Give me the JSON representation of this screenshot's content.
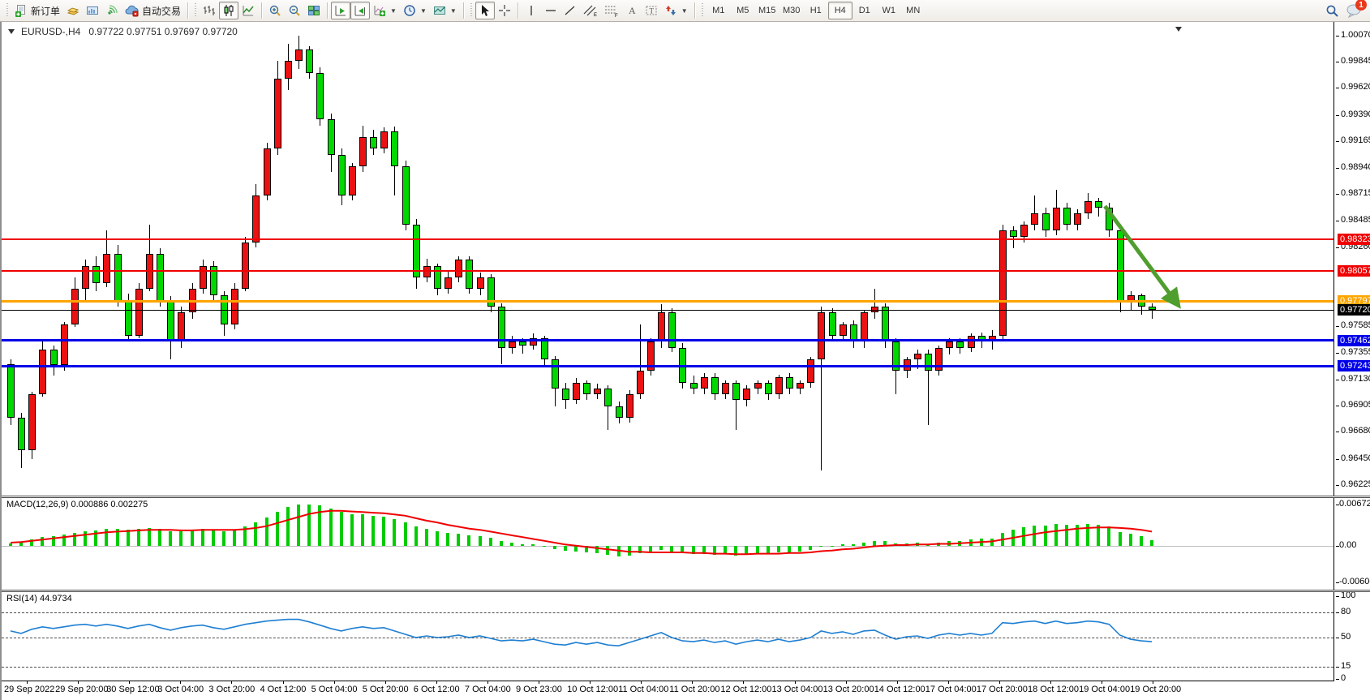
{
  "app": {
    "window_symbol": "EURUSD-,H4",
    "ohlc_display": "0.97722 0.97751 0.97697 0.97720"
  },
  "toolbar": {
    "new_order_label": "新订单",
    "autotrading_label": "自动交易",
    "timeframes": [
      "M1",
      "M5",
      "M15",
      "M30",
      "H1",
      "H4",
      "D1",
      "W1",
      "MN"
    ],
    "selected_timeframe": "H4",
    "notification_count": "1"
  },
  "chart_data": {
    "type": "candlestick",
    "symbol": "EURUSD-",
    "timeframe": "H4",
    "ohlc_display": {
      "open": "0.97722",
      "high": "0.97751",
      "low": "0.97697",
      "close": "0.97720"
    },
    "y_range_main": [
      0.96135,
      1.00185
    ],
    "price_axis_ticks": [
      "1.00070",
      "0.99845",
      "0.99620",
      "0.99390",
      "0.99165",
      "0.98940",
      "0.98715",
      "0.98485",
      "0.98260",
      "0.97585",
      "0.97355",
      "0.97130",
      "0.96905",
      "0.96680",
      "0.96450",
      "0.96225"
    ],
    "time_labels": [
      "29 Sep 2022",
      "29 Sep 20:00",
      "30 Sep 12:00",
      "3 Oct 04:00",
      "3 Oct 20:00",
      "4 Oct 12:00",
      "5 Oct 04:00",
      "5 Oct 20:00",
      "6 Oct 12:00",
      "7 Oct 04:00",
      "9 Oct 23:00",
      "10 Oct 12:00",
      "11 Oct 04:00",
      "11 Oct 20:00",
      "12 Oct 12:00",
      "13 Oct 04:00",
      "13 Oct 20:00",
      "14 Oct 12:00",
      "17 Oct 04:00",
      "17 Oct 20:00",
      "18 Oct 12:00",
      "19 Oct 04:00",
      "19 Oct 20:00"
    ],
    "candles": [
      [
        0.9726,
        0.973,
        0.9674,
        0.968
      ],
      [
        0.968,
        0.9684,
        0.9637,
        0.9652
      ],
      [
        0.9652,
        0.9702,
        0.9645,
        0.97
      ],
      [
        0.97,
        0.9745,
        0.9698,
        0.9738
      ],
      [
        0.9738,
        0.9742,
        0.9716,
        0.9725
      ],
      [
        0.9725,
        0.9762,
        0.972,
        0.976
      ],
      [
        0.976,
        0.98,
        0.9758,
        0.979
      ],
      [
        0.979,
        0.9815,
        0.978,
        0.981
      ],
      [
        0.981,
        0.9818,
        0.9788,
        0.9795
      ],
      [
        0.9795,
        0.984,
        0.9792,
        0.982
      ],
      [
        0.982,
        0.9828,
        0.9775,
        0.978
      ],
      [
        0.978,
        0.9786,
        0.9745,
        0.975
      ],
      [
        0.975,
        0.9795,
        0.9748,
        0.979
      ],
      [
        0.979,
        0.9845,
        0.9788,
        0.982
      ],
      [
        0.982,
        0.9825,
        0.9775,
        0.978
      ],
      [
        0.978,
        0.9784,
        0.973,
        0.9745
      ],
      [
        0.9745,
        0.9775,
        0.974,
        0.977
      ],
      [
        0.977,
        0.9795,
        0.9765,
        0.979
      ],
      [
        0.979,
        0.9815,
        0.9786,
        0.981
      ],
      [
        0.981,
        0.9814,
        0.978,
        0.9785
      ],
      [
        0.9785,
        0.9788,
        0.975,
        0.976
      ],
      [
        0.976,
        0.9795,
        0.9756,
        0.979
      ],
      [
        0.979,
        0.9835,
        0.9788,
        0.983
      ],
      [
        0.983,
        0.988,
        0.9826,
        0.987
      ],
      [
        0.987,
        0.9915,
        0.9866,
        0.991
      ],
      [
        0.991,
        0.9985,
        0.9905,
        0.997
      ],
      [
        0.997,
        1.0,
        0.996,
        0.9985
      ],
      [
        0.9985,
        1.0007,
        0.9978,
        0.9995
      ],
      [
        0.9995,
        0.9998,
        0.997,
        0.9975
      ],
      [
        0.9975,
        0.998,
        0.993,
        0.9935
      ],
      [
        0.9935,
        0.994,
        0.989,
        0.9905
      ],
      [
        0.9905,
        0.991,
        0.9862,
        0.987
      ],
      [
        0.987,
        0.9898,
        0.9866,
        0.9895
      ],
      [
        0.9895,
        0.993,
        0.989,
        0.992
      ],
      [
        0.992,
        0.9926,
        0.9905,
        0.991
      ],
      [
        0.991,
        0.9928,
        0.9906,
        0.9925
      ],
      [
        0.9925,
        0.9929,
        0.987,
        0.9895
      ],
      [
        0.9895,
        0.99,
        0.984,
        0.9845
      ],
      [
        0.9845,
        0.985,
        0.979,
        0.98
      ],
      [
        0.98,
        0.9816,
        0.9796,
        0.981
      ],
      [
        0.981,
        0.9812,
        0.9785,
        0.979
      ],
      [
        0.979,
        0.9805,
        0.9786,
        0.98
      ],
      [
        0.98,
        0.9818,
        0.9796,
        0.9815
      ],
      [
        0.9815,
        0.9818,
        0.9786,
        0.979
      ],
      [
        0.979,
        0.9804,
        0.9785,
        0.98
      ],
      [
        0.98,
        0.9803,
        0.977,
        0.9775
      ],
      [
        0.9775,
        0.9778,
        0.9726,
        0.974
      ],
      [
        0.974,
        0.975,
        0.9735,
        0.9745
      ],
      [
        0.9745,
        0.9748,
        0.9735,
        0.9742
      ],
      [
        0.9742,
        0.9752,
        0.9738,
        0.9748
      ],
      [
        0.9748,
        0.975,
        0.9725,
        0.973
      ],
      [
        0.973,
        0.9733,
        0.969,
        0.9705
      ],
      [
        0.9705,
        0.971,
        0.9688,
        0.9695
      ],
      [
        0.9695,
        0.9714,
        0.9692,
        0.971
      ],
      [
        0.971,
        0.9712,
        0.9695,
        0.97
      ],
      [
        0.97,
        0.9709,
        0.9696,
        0.9705
      ],
      [
        0.9705,
        0.9708,
        0.967,
        0.969
      ],
      [
        0.969,
        0.9694,
        0.9675,
        0.968
      ],
      [
        0.968,
        0.9704,
        0.9676,
        0.97
      ],
      [
        0.97,
        0.976,
        0.9696,
        0.972
      ],
      [
        0.972,
        0.9748,
        0.9716,
        0.9745
      ],
      [
        0.9745,
        0.9777,
        0.974,
        0.977
      ],
      [
        0.977,
        0.9774,
        0.9736,
        0.974
      ],
      [
        0.974,
        0.9744,
        0.9705,
        0.971
      ],
      [
        0.971,
        0.9716,
        0.97,
        0.9705
      ],
      [
        0.9705,
        0.9718,
        0.97,
        0.9715
      ],
      [
        0.9715,
        0.9718,
        0.9695,
        0.97
      ],
      [
        0.97,
        0.9712,
        0.9696,
        0.971
      ],
      [
        0.971,
        0.9712,
        0.967,
        0.9695
      ],
      [
        0.9695,
        0.9708,
        0.969,
        0.9705
      ],
      [
        0.9705,
        0.9712,
        0.97,
        0.971
      ],
      [
        0.971,
        0.9712,
        0.9695,
        0.97
      ],
      [
        0.97,
        0.9717,
        0.9696,
        0.9715
      ],
      [
        0.9715,
        0.9718,
        0.97,
        0.9705
      ],
      [
        0.9705,
        0.9712,
        0.97,
        0.971
      ],
      [
        0.971,
        0.9732,
        0.9706,
        0.973
      ],
      [
        0.973,
        0.9775,
        0.9635,
        0.977
      ],
      [
        0.977,
        0.9774,
        0.9745,
        0.975
      ],
      [
        0.975,
        0.9762,
        0.9745,
        0.976
      ],
      [
        0.976,
        0.9763,
        0.974,
        0.9745
      ],
      [
        0.9745,
        0.9772,
        0.974,
        0.977
      ],
      [
        0.977,
        0.979,
        0.9765,
        0.9775
      ],
      [
        0.9775,
        0.9778,
        0.974,
        0.9745
      ],
      [
        0.9745,
        0.9748,
        0.97,
        0.972
      ],
      [
        0.972,
        0.9732,
        0.9714,
        0.973
      ],
      [
        0.973,
        0.9738,
        0.9722,
        0.9735
      ],
      [
        0.9735,
        0.9738,
        0.9674,
        0.972
      ],
      [
        0.972,
        0.9742,
        0.9716,
        0.974
      ],
      [
        0.974,
        0.9748,
        0.9734,
        0.9745
      ],
      [
        0.9745,
        0.9748,
        0.9735,
        0.974
      ],
      [
        0.974,
        0.9752,
        0.9736,
        0.975
      ],
      [
        0.975,
        0.9753,
        0.974,
        0.9745
      ],
      [
        0.9745,
        0.9755,
        0.9738,
        0.975
      ],
      [
        0.975,
        0.9845,
        0.9746,
        0.984
      ],
      [
        0.984,
        0.9844,
        0.9825,
        0.9835
      ],
      [
        0.9835,
        0.9848,
        0.983,
        0.9845
      ],
      [
        0.9845,
        0.987,
        0.984,
        0.9855
      ],
      [
        0.9855,
        0.986,
        0.9835,
        0.984
      ],
      [
        0.984,
        0.9875,
        0.9836,
        0.986
      ],
      [
        0.986,
        0.9864,
        0.984,
        0.9845
      ],
      [
        0.9845,
        0.9858,
        0.984,
        0.9855
      ],
      [
        0.9855,
        0.9872,
        0.985,
        0.9865
      ],
      [
        0.9865,
        0.9868,
        0.9852,
        0.986
      ],
      [
        0.986,
        0.9864,
        0.9835,
        0.984
      ],
      [
        0.984,
        0.9842,
        0.977,
        0.978
      ],
      [
        0.978,
        0.9788,
        0.9772,
        0.9785
      ],
      [
        0.9785,
        0.9786,
        0.9768,
        0.9775
      ],
      [
        0.9775,
        0.9778,
        0.9765,
        0.9772
      ]
    ],
    "hlines": [
      {
        "price": 0.98323,
        "label": "0.98323",
        "color": "#f00000",
        "thickness": 2
      },
      {
        "price": 0.98057,
        "label": "0.98057",
        "color": "#f00000",
        "thickness": 2
      },
      {
        "price": 0.97797,
        "label": "0.97797",
        "color": "#ffa500",
        "thickness": 3
      },
      {
        "price": 0.97462,
        "label": "0.97462",
        "color": "#0000e8",
        "thickness": 3
      },
      {
        "price": 0.97243,
        "label": "0.97243",
        "color": "#0000e8",
        "thickness": 3
      }
    ],
    "current_price": {
      "price": 0.9772,
      "label": "0.97720",
      "color": "#000000"
    },
    "arrow_annotation": {
      "from_bar": 102.6,
      "from_price": 0.9861,
      "to_bar": 109.5,
      "to_price": 0.9776,
      "color": "#4f9e2e"
    },
    "macd": {
      "label": "MACD(12,26,9)",
      "values_display": "0.000886 0.002275",
      "axis_ticks": [
        "0.006723",
        "0.00",
        "-0.006063"
      ],
      "y_range": [
        -0.0072,
        0.0078
      ],
      "histogram": [
        0.0004,
        0.0006,
        0.001,
        0.0014,
        0.0016,
        0.0018,
        0.0021,
        0.0024,
        0.0025,
        0.0027,
        0.0028,
        0.0026,
        0.0027,
        0.0029,
        0.0027,
        0.0024,
        0.0024,
        0.0025,
        0.0027,
        0.0026,
        0.0024,
        0.0026,
        0.0031,
        0.0038,
        0.0046,
        0.0056,
        0.0063,
        0.0067,
        0.0068,
        0.0066,
        0.0061,
        0.0055,
        0.0052,
        0.0051,
        0.0049,
        0.0048,
        0.0044,
        0.0038,
        0.0031,
        0.0027,
        0.0023,
        0.0021,
        0.002,
        0.0017,
        0.0016,
        0.0013,
        0.0008,
        0.0005,
        0.0003,
        0.0002,
        -0.0001,
        -0.0005,
        -0.0008,
        -0.0009,
        -0.0011,
        -0.0012,
        -0.0015,
        -0.0017,
        -0.0016,
        -0.0012,
        -0.001,
        -0.0007,
        -0.0009,
        -0.0012,
        -0.0014,
        -0.0014,
        -0.0015,
        -0.0014,
        -0.0016,
        -0.0014,
        -0.0013,
        -0.0013,
        -0.0011,
        -0.0011,
        -0.001,
        -0.0007,
        -0.0002,
        0.0,
        0.0002,
        0.0002,
        0.0005,
        0.0008,
        0.0007,
        0.0004,
        0.0004,
        0.0005,
        0.0003,
        0.0005,
        0.0007,
        0.0008,
        0.001,
        0.0011,
        0.0012,
        0.0021,
        0.0026,
        0.003,
        0.0033,
        0.0033,
        0.0035,
        0.0034,
        0.0034,
        0.0035,
        0.0034,
        0.0031,
        0.0022,
        0.002,
        0.0015,
        0.0009
      ],
      "signal": [
        0.0005,
        0.0006,
        0.0008,
        0.001,
        0.0012,
        0.0014,
        0.0016,
        0.0018,
        0.002,
        0.0022,
        0.0023,
        0.0024,
        0.0025,
        0.0026,
        0.0026,
        0.0026,
        0.0025,
        0.0025,
        0.0026,
        0.0026,
        0.0026,
        0.0026,
        0.0027,
        0.0029,
        0.0032,
        0.0037,
        0.0042,
        0.0047,
        0.0052,
        0.0055,
        0.0057,
        0.0057,
        0.0056,
        0.0055,
        0.0054,
        0.0053,
        0.0051,
        0.0049,
        0.0045,
        0.0041,
        0.0038,
        0.0034,
        0.0031,
        0.0028,
        0.0026,
        0.0023,
        0.002,
        0.0017,
        0.0014,
        0.0011,
        0.0008,
        0.0005,
        0.0002,
        0.0,
        -0.0002,
        -0.0004,
        -0.0006,
        -0.0008,
        -0.001,
        -0.001,
        -0.0011,
        -0.0011,
        -0.0011,
        -0.0011,
        -0.0012,
        -0.0012,
        -0.0013,
        -0.0013,
        -0.0014,
        -0.0014,
        -0.0013,
        -0.0013,
        -0.0013,
        -0.0012,
        -0.0012,
        -0.0011,
        -0.0009,
        -0.0008,
        -0.0006,
        -0.0005,
        -0.0003,
        -0.0001,
        0.0,
        0.0001,
        0.0001,
        0.0002,
        0.0002,
        0.0003,
        0.0003,
        0.0004,
        0.0005,
        0.0006,
        0.0007,
        0.001,
        0.0013,
        0.0016,
        0.0019,
        0.0022,
        0.0024,
        0.0026,
        0.0028,
        0.0029,
        0.003,
        0.003,
        0.0029,
        0.0028,
        0.0026,
        0.0023
      ]
    },
    "rsi": {
      "label": "RSI(14)",
      "value_display": "44.9734",
      "axis_ticks": [
        "100",
        "80",
        "50",
        "15",
        "0"
      ],
      "levels": [
        80,
        50,
        15
      ],
      "y_range": [
        -2,
        105
      ],
      "values": [
        58,
        55,
        60,
        63,
        61,
        63,
        65,
        66,
        64,
        66,
        64,
        61,
        64,
        66,
        62,
        59,
        62,
        64,
        65,
        62,
        60,
        63,
        66,
        68,
        70,
        71,
        72,
        72,
        69,
        65,
        61,
        58,
        61,
        63,
        61,
        62,
        58,
        54,
        50,
        52,
        50,
        51,
        53,
        50,
        52,
        49,
        46,
        47,
        46,
        48,
        45,
        42,
        41,
        44,
        42,
        44,
        41,
        40,
        44,
        48,
        52,
        56,
        50,
        46,
        45,
        47,
        44,
        46,
        42,
        45,
        47,
        45,
        48,
        45,
        47,
        50,
        58,
        55,
        57,
        54,
        58,
        59,
        53,
        48,
        51,
        52,
        49,
        53,
        55,
        53,
        55,
        53,
        55,
        68,
        67,
        69,
        70,
        67,
        70,
        67,
        68,
        70,
        69,
        66,
        53,
        48,
        46,
        45
      ]
    }
  },
  "colors": {
    "bull_candle": "#ea1212",
    "bear_candle": "#00d800",
    "macd_histogram": "#00cc00",
    "macd_signal": "#f00000",
    "rsi_line": "#1e7fd2",
    "arrow": "#4f9e2e",
    "current_price_tag": "#000000"
  }
}
